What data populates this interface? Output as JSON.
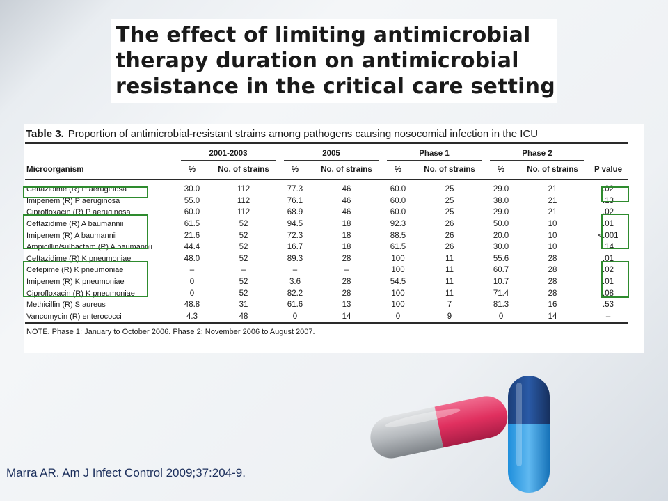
{
  "slide": {
    "title_lines": [
      "The effect of limiting antimicrobial",
      "therapy duration on antimicrobial",
      "resistance in the critical care setting"
    ],
    "citation": "Marra AR. Am J Infect Control 2009;37:204-9."
  },
  "table": {
    "label": "Table 3.",
    "caption": "Proportion of antimicrobial-resistant strains among pathogens causing nosocomial infection in the ICU",
    "groups": [
      "2001-2003",
      "2005",
      "Phase 1",
      "Phase 2"
    ],
    "headers": {
      "organism": "Microorganism",
      "pct": "%",
      "strains": "No. of strains",
      "pvalue": "P value"
    },
    "rows": [
      {
        "org": "Ceftazidime (R) P aeruginosa",
        "v": [
          "30.0",
          "112",
          "77.3",
          "46",
          "60.0",
          "25",
          "29.0",
          "21"
        ],
        "p": ".02"
      },
      {
        "org": "Imipenem (R) P aeruginosa",
        "v": [
          "55.0",
          "112",
          "76.1",
          "46",
          "60.0",
          "25",
          "38.0",
          "21"
        ],
        "p": ".13"
      },
      {
        "org": "Ciprofloxacin (R) P aeruginosa",
        "v": [
          "60.0",
          "112",
          "68.9",
          "46",
          "60.0",
          "25",
          "29.0",
          "21"
        ],
        "p": ".02"
      },
      {
        "org": "Ceftazidime (R) A baumannii",
        "v": [
          "61.5",
          "52",
          "94.5",
          "18",
          "92.3",
          "26",
          "50.0",
          "10"
        ],
        "p": ".01"
      },
      {
        "org": "Imipenem (R) A baumannii",
        "v": [
          "21.6",
          "52",
          "72.3",
          "18",
          "88.5",
          "26",
          "20.0",
          "10"
        ],
        "p": "<.001"
      },
      {
        "org": "Ampicillin/sulbactam (R) A baumannii",
        "v": [
          "44.4",
          "52",
          "16.7",
          "18",
          "61.5",
          "26",
          "30.0",
          "10"
        ],
        "p": ".14"
      },
      {
        "org": "Ceftazidime (R) K pneumoniae",
        "v": [
          "48.0",
          "52",
          "89.3",
          "28",
          "100",
          "11",
          "55.6",
          "28"
        ],
        "p": ".01"
      },
      {
        "org": "Cefepime (R) K pneumoniae",
        "v": [
          "–",
          "–",
          "–",
          "–",
          "100",
          "11",
          "60.7",
          "28"
        ],
        "p": ".02"
      },
      {
        "org": "Imipenem (R) K pneumoniae",
        "v": [
          "0",
          "52",
          "3.6",
          "28",
          "54.5",
          "11",
          "10.7",
          "28"
        ],
        "p": ".01"
      },
      {
        "org": "Ciprofloxacin (R) K pneumoniae",
        "v": [
          "0",
          "52",
          "82.2",
          "28",
          "100",
          "11",
          "71.4",
          "28"
        ],
        "p": ".08"
      },
      {
        "org": "Methicillin (R) S aureus",
        "v": [
          "48.8",
          "31",
          "61.6",
          "13",
          "100",
          "7",
          "81.3",
          "16"
        ],
        "p": ".53"
      },
      {
        "org": "Vancomycin (R) enterococci",
        "v": [
          "4.3",
          "48",
          "0",
          "14",
          "0",
          "9",
          "0",
          "14"
        ],
        "p": "–"
      }
    ],
    "note": "NOTE. Phase 1: January to October 2006. Phase 2: November 2006 to August 2007."
  },
  "colors": {
    "highlight_box": "#2e8b2e",
    "citation_text": "#1c2f5c",
    "pill_pink": "#e0305f",
    "pill_blue": "#1f8fdc"
  },
  "icons": [
    "capsule-pink-icon",
    "capsule-blue-icon"
  ]
}
